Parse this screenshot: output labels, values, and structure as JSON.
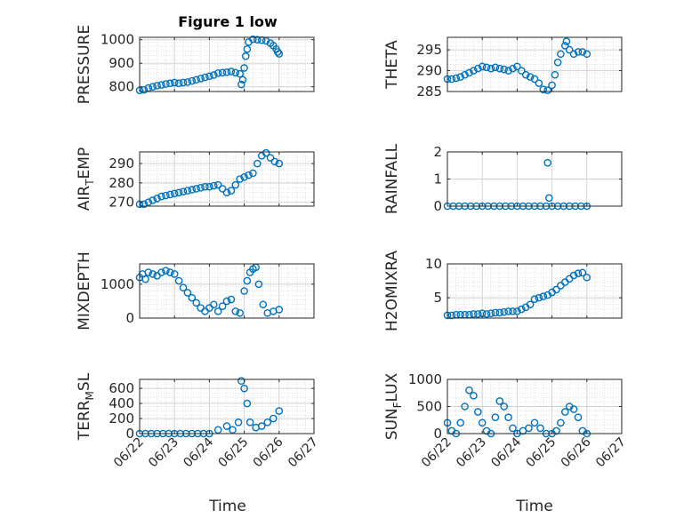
{
  "figure": {
    "title": "Figure 1 low",
    "xlabel": "Time",
    "date_ticks": [
      "06/22",
      "06/23",
      "06/24",
      "06/25",
      "06/26",
      "06/27"
    ],
    "series_color": "#0072BD",
    "axis_color": "#262626",
    "grid_color": "#d9d9d9"
  },
  "chart_data": [
    {
      "type": "scatter",
      "id": "pressure",
      "ylabel": "PRESSURE",
      "ylim": [
        780,
        1010
      ],
      "yticks": [
        800,
        900,
        1000
      ],
      "ytick_labels": [
        "800",
        "900",
        "1000"
      ],
      "xlim": [
        "06/22",
        "06/27"
      ],
      "show_xticks": false,
      "minor_grid": true,
      "points": [
        [
          "06/22 00:00",
          785
        ],
        [
          "06/22 03:00",
          787
        ],
        [
          "06/22 06:00",
          795
        ],
        [
          "06/22 09:00",
          800
        ],
        [
          "06/22 12:00",
          805
        ],
        [
          "06/22 15:00",
          808
        ],
        [
          "06/22 18:00",
          812
        ],
        [
          "06/22 21:00",
          815
        ],
        [
          "06/23 00:00",
          818
        ],
        [
          "06/23 03:00",
          815
        ],
        [
          "06/23 06:00",
          818
        ],
        [
          "06/23 09:00",
          820
        ],
        [
          "06/23 12:00",
          825
        ],
        [
          "06/23 15:00",
          830
        ],
        [
          "06/23 18:00",
          835
        ],
        [
          "06/23 21:00",
          840
        ],
        [
          "06/24 00:00",
          845
        ],
        [
          "06/24 03:00",
          850
        ],
        [
          "06/24 06:00",
          858
        ],
        [
          "06/24 09:00",
          860
        ],
        [
          "06/24 12:00",
          862
        ],
        [
          "06/24 15:00",
          865
        ],
        [
          "06/24 18:00",
          860
        ],
        [
          "06/24 21:00",
          855
        ],
        [
          "06/24 22:00",
          810
        ],
        [
          "06/24 23:00",
          830
        ],
        [
          "06/25 00:00",
          880
        ],
        [
          "06/25 01:00",
          930
        ],
        [
          "06/25 02:00",
          960
        ],
        [
          "06/25 03:00",
          990
        ],
        [
          "06/25 06:00",
          1002
        ],
        [
          "06/25 09:00",
          1000
        ],
        [
          "06/25 12:00",
          998
        ],
        [
          "06/25 15:00",
          995
        ],
        [
          "06/25 18:00",
          985
        ],
        [
          "06/25 20:00",
          975
        ],
        [
          "06/25 22:00",
          960
        ],
        [
          "06/25 23:00",
          948
        ],
        [
          "06/26 00:00",
          940
        ]
      ]
    },
    {
      "type": "scatter",
      "id": "theta",
      "ylabel": "THETA",
      "ylim": [
        285,
        298
      ],
      "yticks": [
        285,
        290,
        295
      ],
      "ytick_labels": [
        "285",
        "290",
        "295"
      ],
      "xlim": [
        "06/22",
        "06/27"
      ],
      "show_xticks": false,
      "minor_grid": true,
      "points": [
        [
          "06/22 00:00",
          288
        ],
        [
          "06/22 03:00",
          288
        ],
        [
          "06/22 06:00",
          288.2
        ],
        [
          "06/22 09:00",
          288.5
        ],
        [
          "06/22 12:00",
          289
        ],
        [
          "06/22 15:00",
          289.5
        ],
        [
          "06/22 18:00",
          290
        ],
        [
          "06/22 21:00",
          290.5
        ],
        [
          "06/23 00:00",
          291
        ],
        [
          "06/23 03:00",
          290.8
        ],
        [
          "06/23 06:00",
          290.5
        ],
        [
          "06/23 09:00",
          290.8
        ],
        [
          "06/23 12:00",
          290.5
        ],
        [
          "06/23 15:00",
          290.3
        ],
        [
          "06/23 18:00",
          290
        ],
        [
          "06/23 21:00",
          290.5
        ],
        [
          "06/24 00:00",
          291
        ],
        [
          "06/24 03:00",
          290
        ],
        [
          "06/24 06:00",
          289
        ],
        [
          "06/24 09:00",
          288.5
        ],
        [
          "06/24 12:00",
          288
        ],
        [
          "06/24 15:00",
          287
        ],
        [
          "06/24 18:00",
          285.5
        ],
        [
          "06/24 21:00",
          285.3
        ],
        [
          "06/25 00:00",
          286.5
        ],
        [
          "06/25 02:00",
          289
        ],
        [
          "06/25 04:00",
          292
        ],
        [
          "06/25 06:00",
          294
        ],
        [
          "06/25 09:00",
          296
        ],
        [
          "06/25 10:00",
          297
        ],
        [
          "06/25 12:00",
          295
        ],
        [
          "06/25 15:00",
          294
        ],
        [
          "06/25 18:00",
          294.5
        ],
        [
          "06/25 21:00",
          294.5
        ],
        [
          "06/26 00:00",
          294
        ]
      ]
    },
    {
      "type": "scatter",
      "id": "air_temp",
      "ylabel": "AIR",
      "ylabel_sub": "T",
      "ylabel_after": "EMP",
      "ylim": [
        268,
        296
      ],
      "yticks": [
        270,
        280,
        290
      ],
      "ytick_labels": [
        "270",
        "280",
        "290"
      ],
      "xlim": [
        "06/22",
        "06/27"
      ],
      "show_xticks": false,
      "minor_grid": true,
      "points": [
        [
          "06/22 00:00",
          269
        ],
        [
          "06/22 03:00",
          269
        ],
        [
          "06/22 06:00",
          270
        ],
        [
          "06/22 09:00",
          271
        ],
        [
          "06/22 12:00",
          272
        ],
        [
          "06/22 15:00",
          273
        ],
        [
          "06/22 18:00",
          273.5
        ],
        [
          "06/22 21:00",
          274
        ],
        [
          "06/23 00:00",
          274.5
        ],
        [
          "06/23 03:00",
          275
        ],
        [
          "06/23 06:00",
          275.5
        ],
        [
          "06/23 09:00",
          276
        ],
        [
          "06/23 12:00",
          276.5
        ],
        [
          "06/23 15:00",
          277
        ],
        [
          "06/23 18:00",
          277.5
        ],
        [
          "06/23 21:00",
          278
        ],
        [
          "06/24 00:00",
          278
        ],
        [
          "06/24 03:00",
          278.5
        ],
        [
          "06/24 06:00",
          279
        ],
        [
          "06/24 09:00",
          277
        ],
        [
          "06/24 12:00",
          275
        ],
        [
          "06/24 15:00",
          276
        ],
        [
          "06/24 18:00",
          279
        ],
        [
          "06/24 21:00",
          282
        ],
        [
          "06/25 00:00",
          283
        ],
        [
          "06/25 03:00",
          284
        ],
        [
          "06/25 06:00",
          285
        ],
        [
          "06/25 09:00",
          290
        ],
        [
          "06/25 12:00",
          294
        ],
        [
          "06/25 15:00",
          295.5
        ],
        [
          "06/25 18:00",
          293
        ],
        [
          "06/25 21:00",
          291
        ],
        [
          "06/26 00:00",
          290
        ]
      ]
    },
    {
      "type": "scatter",
      "id": "rainfall",
      "ylabel": "RAINFALL",
      "ylim": [
        0,
        2
      ],
      "yticks": [
        0,
        1,
        2
      ],
      "ytick_labels": [
        "0",
        "1",
        "2"
      ],
      "xlim": [
        "06/22",
        "06/27"
      ],
      "show_xticks": false,
      "minor_grid": false,
      "points": [
        [
          "06/22 00:00",
          0
        ],
        [
          "06/22 04:00",
          0
        ],
        [
          "06/22 08:00",
          0
        ],
        [
          "06/22 12:00",
          0
        ],
        [
          "06/22 16:00",
          0
        ],
        [
          "06/22 20:00",
          0
        ],
        [
          "06/23 00:00",
          0
        ],
        [
          "06/23 04:00",
          0
        ],
        [
          "06/23 08:00",
          0
        ],
        [
          "06/23 12:00",
          0
        ],
        [
          "06/23 16:00",
          0
        ],
        [
          "06/23 20:00",
          0
        ],
        [
          "06/24 00:00",
          0
        ],
        [
          "06/24 04:00",
          0
        ],
        [
          "06/24 08:00",
          0
        ],
        [
          "06/24 12:00",
          0
        ],
        [
          "06/24 16:00",
          0
        ],
        [
          "06/24 20:00",
          0
        ],
        [
          "06/24 21:00",
          1.6
        ],
        [
          "06/24 22:00",
          0.3
        ],
        [
          "06/25 00:00",
          0
        ],
        [
          "06/25 04:00",
          0
        ],
        [
          "06/25 08:00",
          0
        ],
        [
          "06/25 12:00",
          0
        ],
        [
          "06/25 16:00",
          0
        ],
        [
          "06/25 20:00",
          0
        ],
        [
          "06/26 00:00",
          0
        ]
      ]
    },
    {
      "type": "scatter",
      "id": "mixdepth",
      "ylabel": "MIXDEPTH",
      "ylim": [
        0,
        1600
      ],
      "yticks": [
        0,
        1000
      ],
      "ytick_labels": [
        "0",
        "1000"
      ],
      "xlim": [
        "06/22",
        "06/27"
      ],
      "show_xticks": false,
      "minor_grid": true,
      "points": [
        [
          "06/22 00:00",
          1200
        ],
        [
          "06/22 02:00",
          1300
        ],
        [
          "06/22 04:00",
          1150
        ],
        [
          "06/22 06:00",
          1350
        ],
        [
          "06/22 09:00",
          1300
        ],
        [
          "06/22 12:00",
          1250
        ],
        [
          "06/22 15:00",
          1350
        ],
        [
          "06/22 18:00",
          1400
        ],
        [
          "06/22 21:00",
          1350
        ],
        [
          "06/23 00:00",
          1300
        ],
        [
          "06/23 03:00",
          1100
        ],
        [
          "06/23 06:00",
          900
        ],
        [
          "06/23 09:00",
          750
        ],
        [
          "06/23 12:00",
          600
        ],
        [
          "06/23 15:00",
          450
        ],
        [
          "06/23 18:00",
          300
        ],
        [
          "06/23 21:00",
          200
        ],
        [
          "06/24 00:00",
          300
        ],
        [
          "06/24 03:00",
          400
        ],
        [
          "06/24 06:00",
          200
        ],
        [
          "06/24 09:00",
          350
        ],
        [
          "06/24 12:00",
          500
        ],
        [
          "06/24 15:00",
          550
        ],
        [
          "06/24 18:00",
          200
        ],
        [
          "06/24 21:00",
          150
        ],
        [
          "06/25 00:00",
          800
        ],
        [
          "06/25 02:00",
          1100
        ],
        [
          "06/25 04:00",
          1350
        ],
        [
          "06/25 06:00",
          1450
        ],
        [
          "06/25 08:00",
          1500
        ],
        [
          "06/25 10:00",
          1000
        ],
        [
          "06/25 13:00",
          400
        ],
        [
          "06/25 16:00",
          150
        ],
        [
          "06/25 20:00",
          200
        ],
        [
          "06/26 00:00",
          250
        ]
      ]
    },
    {
      "type": "scatter",
      "id": "h2omixra",
      "ylabel": "H2OMIXRA",
      "ylim": [
        2,
        10
      ],
      "yticks": [
        5,
        10
      ],
      "ytick_labels": [
        "5",
        "10"
      ],
      "xlim": [
        "06/22",
        "06/27"
      ],
      "show_xticks": false,
      "minor_grid": true,
      "points": [
        [
          "06/22 00:00",
          2.4
        ],
        [
          "06/22 03:00",
          2.4
        ],
        [
          "06/22 06:00",
          2.5
        ],
        [
          "06/22 09:00",
          2.5
        ],
        [
          "06/22 12:00",
          2.5
        ],
        [
          "06/22 15:00",
          2.5
        ],
        [
          "06/22 18:00",
          2.6
        ],
        [
          "06/22 21:00",
          2.6
        ],
        [
          "06/23 00:00",
          2.7
        ],
        [
          "06/23 03:00",
          2.6
        ],
        [
          "06/23 06:00",
          2.7
        ],
        [
          "06/23 09:00",
          2.8
        ],
        [
          "06/23 12:00",
          2.8
        ],
        [
          "06/23 15:00",
          2.9
        ],
        [
          "06/23 18:00",
          3.0
        ],
        [
          "06/23 21:00",
          3.0
        ],
        [
          "06/24 00:00",
          3.0
        ],
        [
          "06/24 03:00",
          3.3
        ],
        [
          "06/24 06:00",
          3.6
        ],
        [
          "06/24 09:00",
          4.0
        ],
        [
          "06/24 12:00",
          4.8
        ],
        [
          "06/24 15:00",
          5.0
        ],
        [
          "06/24 18:00",
          5.2
        ],
        [
          "06/24 21:00",
          5.4
        ],
        [
          "06/25 00:00",
          5.8
        ],
        [
          "06/25 03:00",
          6.2
        ],
        [
          "06/25 06:00",
          6.8
        ],
        [
          "06/25 09:00",
          7.3
        ],
        [
          "06/25 12:00",
          7.8
        ],
        [
          "06/25 15:00",
          8.3
        ],
        [
          "06/25 18:00",
          8.6
        ],
        [
          "06/25 21:00",
          8.7
        ],
        [
          "06/26 00:00",
          8.0
        ]
      ]
    },
    {
      "type": "scatter",
      "id": "terr_msl",
      "ylabel": "TERR",
      "ylabel_sub": "M",
      "ylabel_after": "SL",
      "ylim": [
        0,
        720
      ],
      "yticks": [
        0,
        200,
        400,
        600
      ],
      "ytick_labels": [
        "0",
        "200",
        "400",
        "600"
      ],
      "xlim": [
        "06/22",
        "06/27"
      ],
      "show_xticks": true,
      "minor_grid": true,
      "points": [
        [
          "06/22 00:00",
          0
        ],
        [
          "06/22 04:00",
          0
        ],
        [
          "06/22 08:00",
          0
        ],
        [
          "06/22 12:00",
          0
        ],
        [
          "06/22 16:00",
          0
        ],
        [
          "06/22 20:00",
          0
        ],
        [
          "06/23 00:00",
          0
        ],
        [
          "06/23 04:00",
          0
        ],
        [
          "06/23 08:00",
          0
        ],
        [
          "06/23 12:00",
          0
        ],
        [
          "06/23 16:00",
          0
        ],
        [
          "06/23 20:00",
          0
        ],
        [
          "06/24 00:00",
          0
        ],
        [
          "06/24 06:00",
          50
        ],
        [
          "06/24 12:00",
          100
        ],
        [
          "06/24 16:00",
          50
        ],
        [
          "06/24 20:00",
          150
        ],
        [
          "06/24 22:00",
          700
        ],
        [
          "06/25 00:00",
          600
        ],
        [
          "06/25 02:00",
          400
        ],
        [
          "06/25 04:00",
          150
        ],
        [
          "06/25 08:00",
          80
        ],
        [
          "06/25 12:00",
          100
        ],
        [
          "06/25 16:00",
          150
        ],
        [
          "06/25 20:00",
          200
        ],
        [
          "06/26 00:00",
          300
        ]
      ]
    },
    {
      "type": "scatter",
      "id": "sun_flux",
      "ylabel": "SUN",
      "ylabel_sub": "F",
      "ylabel_after": "LUX",
      "ylim": [
        0,
        1000
      ],
      "yticks": [
        0,
        500,
        1000
      ],
      "ytick_labels": [
        "0",
        "500",
        "1000"
      ],
      "xlim": [
        "06/22",
        "06/27"
      ],
      "show_xticks": true,
      "minor_grid": true,
      "points": [
        [
          "06/22 00:00",
          200
        ],
        [
          "06/22 03:00",
          50
        ],
        [
          "06/22 06:00",
          0
        ],
        [
          "06/22 09:00",
          200
        ],
        [
          "06/22 12:00",
          500
        ],
        [
          "06/22 15:00",
          800
        ],
        [
          "06/22 18:00",
          700
        ],
        [
          "06/22 21:00",
          400
        ],
        [
          "06/23 00:00",
          200
        ],
        [
          "06/23 03:00",
          50
        ],
        [
          "06/23 06:00",
          0
        ],
        [
          "06/23 09:00",
          300
        ],
        [
          "06/23 12:00",
          600
        ],
        [
          "06/23 15:00",
          500
        ],
        [
          "06/23 18:00",
          300
        ],
        [
          "06/23 21:00",
          100
        ],
        [
          "06/24 00:00",
          0
        ],
        [
          "06/24 04:00",
          50
        ],
        [
          "06/24 08:00",
          100
        ],
        [
          "06/24 12:00",
          200
        ],
        [
          "06/24 16:00",
          100
        ],
        [
          "06/24 20:00",
          0
        ],
        [
          "06/25 00:00",
          0
        ],
        [
          "06/25 03:00",
          50
        ],
        [
          "06/25 06:00",
          200
        ],
        [
          "06/25 09:00",
          400
        ],
        [
          "06/25 12:00",
          500
        ],
        [
          "06/25 15:00",
          450
        ],
        [
          "06/25 18:00",
          300
        ],
        [
          "06/25 21:00",
          50
        ],
        [
          "06/26 00:00",
          0
        ]
      ]
    }
  ]
}
